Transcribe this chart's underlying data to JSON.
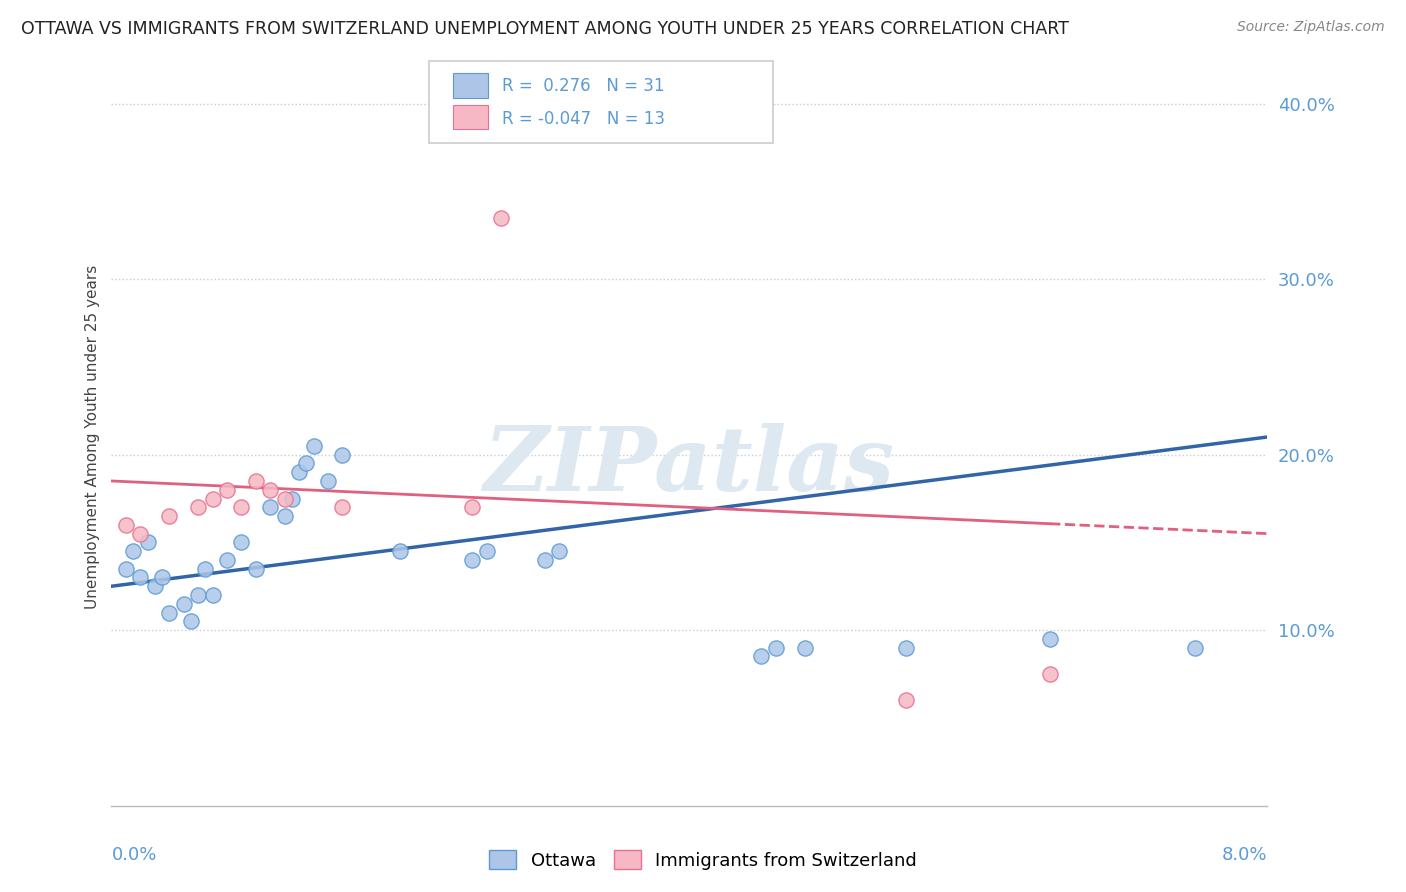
{
  "title": "OTTAWA VS IMMIGRANTS FROM SWITZERLAND UNEMPLOYMENT AMONG YOUTH UNDER 25 YEARS CORRELATION CHART",
  "source": "Source: ZipAtlas.com",
  "ylabel": "Unemployment Among Youth under 25 years",
  "xlim": [
    0.0,
    8.0
  ],
  "ylim": [
    0.0,
    42.0
  ],
  "color_ottawa": "#adc6e8",
  "color_ottawa_edge": "#5b9bd5",
  "color_ottawa_line": "#3265a8",
  "color_swiss": "#f5b8c4",
  "color_swiss_edge": "#e87090",
  "color_swiss_line": "#e06080",
  "watermark_color": "#dde8f0",
  "ottawa_scatter": [
    [
      0.1,
      13.5
    ],
    [
      0.15,
      14.5
    ],
    [
      0.2,
      13.0
    ],
    [
      0.25,
      15.0
    ],
    [
      0.3,
      12.5
    ],
    [
      0.35,
      13.0
    ],
    [
      0.4,
      11.0
    ],
    [
      0.5,
      11.5
    ],
    [
      0.55,
      10.5
    ],
    [
      0.6,
      12.0
    ],
    [
      0.65,
      13.5
    ],
    [
      0.7,
      12.0
    ],
    [
      0.8,
      14.0
    ],
    [
      0.9,
      15.0
    ],
    [
      1.0,
      13.5
    ],
    [
      1.1,
      17.0
    ],
    [
      1.2,
      16.5
    ],
    [
      1.25,
      17.5
    ],
    [
      1.3,
      19.0
    ],
    [
      1.35,
      19.5
    ],
    [
      1.4,
      20.5
    ],
    [
      1.5,
      18.5
    ],
    [
      1.6,
      20.0
    ],
    [
      2.0,
      14.5
    ],
    [
      2.5,
      14.0
    ],
    [
      2.6,
      14.5
    ],
    [
      3.0,
      14.0
    ],
    [
      3.1,
      14.5
    ],
    [
      4.5,
      8.5
    ],
    [
      4.6,
      9.0
    ],
    [
      4.8,
      9.0
    ],
    [
      5.5,
      9.0
    ],
    [
      6.5,
      9.5
    ],
    [
      7.5,
      9.0
    ]
  ],
  "swiss_scatter": [
    [
      0.1,
      16.0
    ],
    [
      0.2,
      15.5
    ],
    [
      0.4,
      16.5
    ],
    [
      0.6,
      17.0
    ],
    [
      0.7,
      17.5
    ],
    [
      0.8,
      18.0
    ],
    [
      0.9,
      17.0
    ],
    [
      1.0,
      18.5
    ],
    [
      1.1,
      18.0
    ],
    [
      1.2,
      17.5
    ],
    [
      1.6,
      17.0
    ],
    [
      2.5,
      17.0
    ],
    [
      2.7,
      33.5
    ],
    [
      5.5,
      6.0
    ],
    [
      6.5,
      7.5
    ]
  ],
  "ottawa_trendline": [
    [
      0.0,
      12.5
    ],
    [
      8.0,
      21.0
    ]
  ],
  "swiss_trendline": [
    [
      0.0,
      18.5
    ],
    [
      8.0,
      15.5
    ]
  ],
  "background_color": "#ffffff",
  "grid_color": "#cccccc"
}
